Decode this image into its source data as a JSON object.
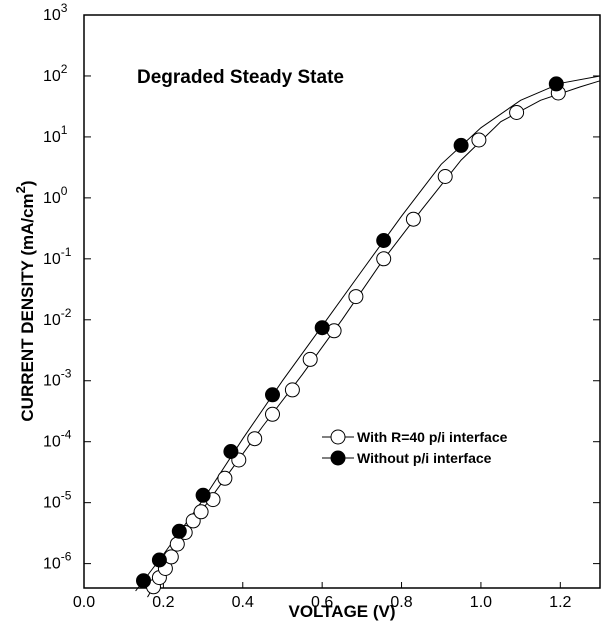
{
  "chart_data": {
    "type": "scatter",
    "xlabel": "VOLTAGE (V)",
    "ylabel": "CURRENT DENSITY (mA/cm",
    "ylabel_sup": "2",
    "ylabel_close": ")",
    "annotation": "Degraded Steady State",
    "xlim": [
      0.0,
      1.3
    ],
    "ylim_exp": [
      -6.4,
      3
    ],
    "y_scale": "log",
    "x_ticks": [
      "0.0",
      "0.2",
      "0.4",
      "0.6",
      "0.8",
      "1.0",
      "1.2"
    ],
    "y_ticks": [
      {
        "base": "10",
        "exp": "-6"
      },
      {
        "base": "10",
        "exp": "-5"
      },
      {
        "base": "10",
        "exp": "-4"
      },
      {
        "base": "10",
        "exp": "-3"
      },
      {
        "base": "10",
        "exp": "-2"
      },
      {
        "base": "10",
        "exp": "-1"
      },
      {
        "base": "10",
        "exp": "0"
      },
      {
        "base": "10",
        "exp": "1"
      },
      {
        "base": "10",
        "exp": "2"
      },
      {
        "base": "10",
        "exp": "3"
      }
    ],
    "legend_position": "lower-right",
    "series": [
      {
        "name": "With R=40 p/i interface",
        "marker": "open-circle",
        "points": [
          [
            0.175,
            -6.38
          ],
          [
            0.19,
            -6.23
          ],
          [
            0.205,
            -6.08
          ],
          [
            0.22,
            -5.89
          ],
          [
            0.235,
            -5.68
          ],
          [
            0.255,
            -5.49
          ],
          [
            0.275,
            -5.3
          ],
          [
            0.295,
            -5.15
          ],
          [
            0.325,
            -4.95
          ],
          [
            0.355,
            -4.6
          ],
          [
            0.39,
            -4.3
          ],
          [
            0.43,
            -3.95
          ],
          [
            0.475,
            -3.55
          ],
          [
            0.525,
            -3.15
          ],
          [
            0.57,
            -2.65
          ],
          [
            0.63,
            -2.18
          ],
          [
            0.685,
            -1.62
          ],
          [
            0.755,
            -1.0
          ],
          [
            0.83,
            -0.35
          ],
          [
            0.91,
            0.35
          ],
          [
            0.995,
            0.95
          ],
          [
            1.09,
            1.4
          ],
          [
            1.195,
            1.72
          ]
        ],
        "line": [
          [
            0.16,
            -6.55
          ],
          [
            0.25,
            -5.55
          ],
          [
            0.35,
            -4.65
          ],
          [
            0.45,
            -3.75
          ],
          [
            0.55,
            -2.9
          ],
          [
            0.65,
            -2.0
          ],
          [
            0.75,
            -1.05
          ],
          [
            0.85,
            -0.2
          ],
          [
            0.95,
            0.62
          ],
          [
            1.05,
            1.25
          ],
          [
            1.15,
            1.6
          ],
          [
            1.25,
            1.82
          ],
          [
            1.3,
            1.92
          ]
        ]
      },
      {
        "name": "Without p/i interface",
        "marker": "filled-circle",
        "points": [
          [
            0.15,
            -6.28
          ],
          [
            0.19,
            -5.94
          ],
          [
            0.24,
            -5.47
          ],
          [
            0.3,
            -4.88
          ],
          [
            0.37,
            -4.16
          ],
          [
            0.475,
            -3.23
          ],
          [
            0.6,
            -2.13
          ],
          [
            0.755,
            -0.7
          ],
          [
            0.95,
            0.86
          ],
          [
            1.19,
            1.87
          ]
        ],
        "line": [
          [
            0.13,
            -6.45
          ],
          [
            0.2,
            -5.85
          ],
          [
            0.3,
            -4.95
          ],
          [
            0.4,
            -3.95
          ],
          [
            0.5,
            -3.0
          ],
          [
            0.6,
            -2.1
          ],
          [
            0.7,
            -1.2
          ],
          [
            0.8,
            -0.3
          ],
          [
            0.9,
            0.55
          ],
          [
            1.0,
            1.15
          ],
          [
            1.1,
            1.6
          ],
          [
            1.2,
            1.88
          ],
          [
            1.3,
            2.0
          ]
        ]
      }
    ]
  }
}
